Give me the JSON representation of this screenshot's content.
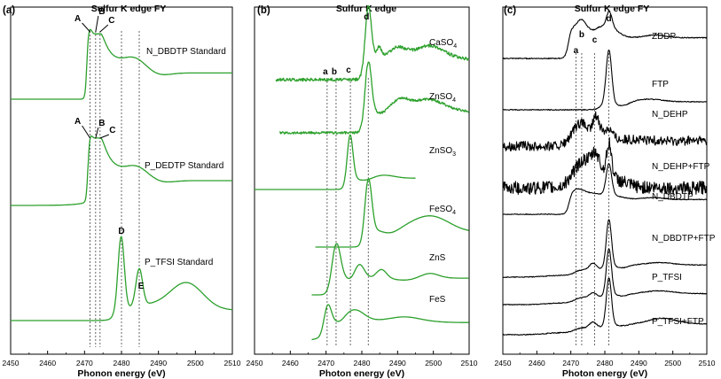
{
  "chart_data": [
    {
      "type": "line",
      "panel_label": "(a)",
      "title": "Sulfur K edge FY",
      "xlabel": "Phonon energy (eV)",
      "ylabel": "",
      "xlim": [
        2450,
        2510
      ],
      "xticks": [
        2450,
        2460,
        2470,
        2480,
        2490,
        2500,
        2510
      ],
      "line_color": "#2ca02c",
      "series": [
        {
          "name": "N_DBDTP Standard",
          "peaks": [
            {
              "label": "A",
              "energy": 2471.5
            },
            {
              "label": "B",
              "energy": 2473.0
            },
            {
              "label": "C",
              "energy": 2474.2
            }
          ]
        },
        {
          "name": "P_DEDTP Standard",
          "peaks": [
            {
              "label": "A",
              "energy": 2471.5
            },
            {
              "label": "B",
              "energy": 2473.0
            },
            {
              "label": "C",
              "energy": 2474.2
            }
          ]
        },
        {
          "name": "P_TFSI Standard",
          "peaks": [
            {
              "label": "D",
              "energy": 2480.0
            },
            {
              "label": "E",
              "energy": 2484.8
            }
          ]
        }
      ],
      "reference_lines": [
        2471.5,
        2473.0,
        2474.2,
        2480.0,
        2484.8
      ]
    },
    {
      "type": "line",
      "panel_label": "(b)",
      "title": "Sulfur K edge",
      "xlabel": "Photon energy (eV)",
      "ylabel": "",
      "xlim": [
        2450,
        2510
      ],
      "xticks": [
        2450,
        2460,
        2470,
        2480,
        2490,
        2500,
        2510
      ],
      "line_color": "#2ca02c",
      "series": [
        {
          "name": "CaSO4",
          "name_main": "CaSO",
          "name_sub": "4"
        },
        {
          "name": "ZnSO4",
          "name_main": "ZnSO",
          "name_sub": "4"
        },
        {
          "name": "ZnSO3",
          "name_main": "ZnSO",
          "name_sub": "3"
        },
        {
          "name": "FeSO4",
          "name_main": "FeSO",
          "name_sub": "4"
        },
        {
          "name": "ZnS",
          "name_main": "ZnS",
          "name_sub": ""
        },
        {
          "name": "FeS",
          "name_main": "FeS",
          "name_sub": ""
        }
      ],
      "peak_labels": [
        {
          "label": "a",
          "energy": 2470.3
        },
        {
          "label": "b",
          "energy": 2472.8
        },
        {
          "label": "c",
          "energy": 2476.8
        },
        {
          "label": "d",
          "energy": 2481.8
        }
      ]
    },
    {
      "type": "line",
      "panel_label": "(c)",
      "title": "Sulfur K edge FY",
      "xlabel": "Photon energy (eV)",
      "ylabel": "",
      "xlim": [
        2450,
        2510
      ],
      "xticks": [
        2450,
        2460,
        2470,
        2480,
        2490,
        2500,
        2510
      ],
      "line_color": "#000000",
      "series": [
        {
          "name": "ZDDP"
        },
        {
          "name": "FTP"
        },
        {
          "name": "N_DEHP"
        },
        {
          "name": "N_DEHP+FTP"
        },
        {
          "name": "N_DBDTP"
        },
        {
          "name": "N_DBDTP+FTP"
        },
        {
          "name": "P_TFSI"
        },
        {
          "name": "P_TFSI+FTP"
        }
      ],
      "peak_labels": [
        {
          "label": "a",
          "energy": 2471.5
        },
        {
          "label": "b",
          "energy": 2473.2
        },
        {
          "label": "c",
          "energy": 2477.0
        },
        {
          "label": "d",
          "energy": 2481.2
        }
      ]
    }
  ]
}
